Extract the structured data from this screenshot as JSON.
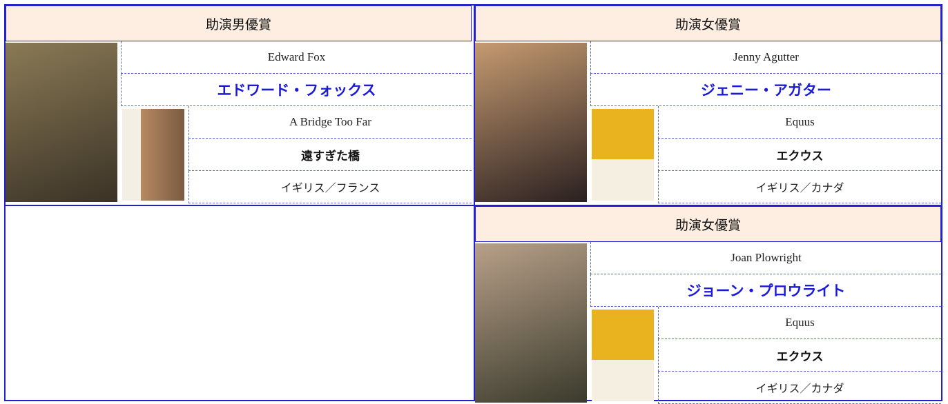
{
  "entries": [
    {
      "award": "助演男優賞",
      "name_en": "Edward Fox",
      "name_ja": "エドワード・フォックス",
      "film_en": "A Bridge Too Far",
      "film_ja": "遠すぎた橋",
      "country": "イギリス／フランス"
    },
    {
      "award": "助演女優賞",
      "name_en": "Jenny Agutter",
      "name_ja": "ジェニー・アガター",
      "film_en": "Equus",
      "film_ja": "エクウス",
      "country": "イギリス／カナダ"
    },
    {
      "award": "助演女優賞",
      "name_en": "Joan Plowright",
      "name_ja": "ジョーン・プロウライト",
      "film_en": "Equus",
      "film_ja": "エクウス",
      "country": "イギリス／カナダ"
    }
  ]
}
